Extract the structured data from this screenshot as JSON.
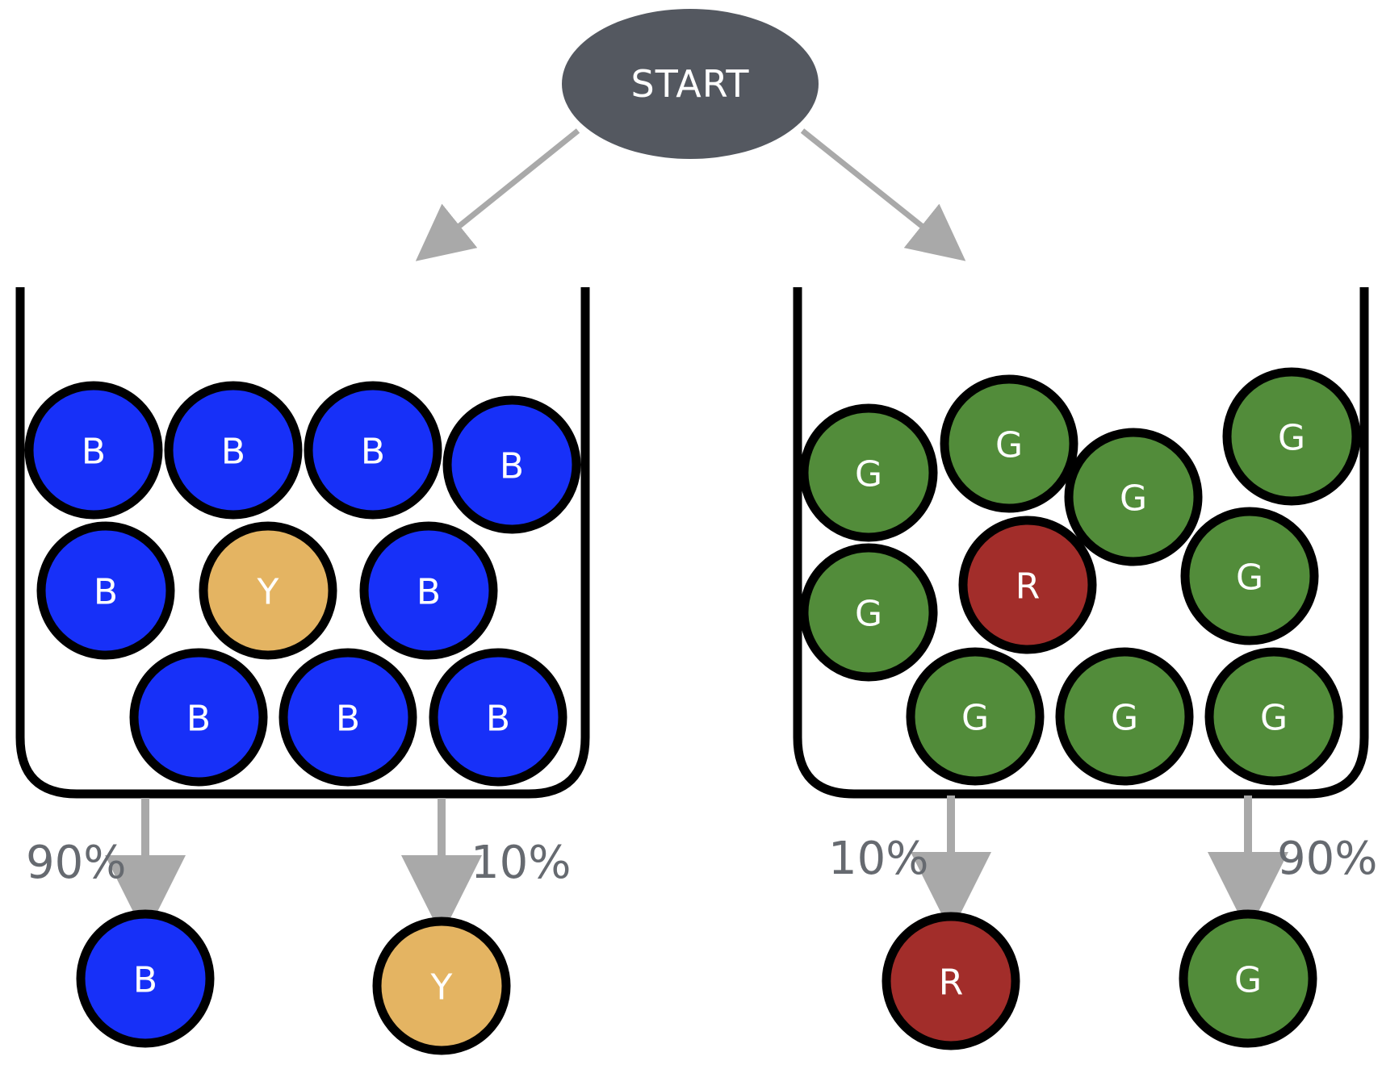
{
  "colors": {
    "blue": "#1730f8",
    "yellow": "#e4b462",
    "green": "#528c3a",
    "red": "#a22d2a",
    "start_fill": "#545860",
    "arrow": "#a9a9a9",
    "outline": "#000000"
  },
  "start": {
    "label": "START"
  },
  "left_urn": {
    "balls": [
      {
        "label": "B",
        "color": "blue"
      },
      {
        "label": "B",
        "color": "blue"
      },
      {
        "label": "B",
        "color": "blue"
      },
      {
        "label": "B",
        "color": "blue"
      },
      {
        "label": "B",
        "color": "blue"
      },
      {
        "label": "Y",
        "color": "yellow"
      },
      {
        "label": "B",
        "color": "blue"
      },
      {
        "label": "B",
        "color": "blue"
      },
      {
        "label": "B",
        "color": "blue"
      },
      {
        "label": "B",
        "color": "blue"
      }
    ],
    "outcomes": [
      {
        "percent": "90%",
        "label": "B",
        "color": "blue"
      },
      {
        "percent": "10%",
        "label": "Y",
        "color": "yellow"
      }
    ]
  },
  "right_urn": {
    "balls": [
      {
        "label": "G",
        "color": "green"
      },
      {
        "label": "G",
        "color": "green"
      },
      {
        "label": "G",
        "color": "green"
      },
      {
        "label": "G",
        "color": "green"
      },
      {
        "label": "G",
        "color": "green"
      },
      {
        "label": "R",
        "color": "red"
      },
      {
        "label": "G",
        "color": "green"
      },
      {
        "label": "G",
        "color": "green"
      },
      {
        "label": "G",
        "color": "green"
      },
      {
        "label": "G",
        "color": "green"
      }
    ],
    "outcomes": [
      {
        "percent": "10%",
        "label": "R",
        "color": "red"
      },
      {
        "percent": "90%",
        "label": "G",
        "color": "green"
      }
    ]
  }
}
